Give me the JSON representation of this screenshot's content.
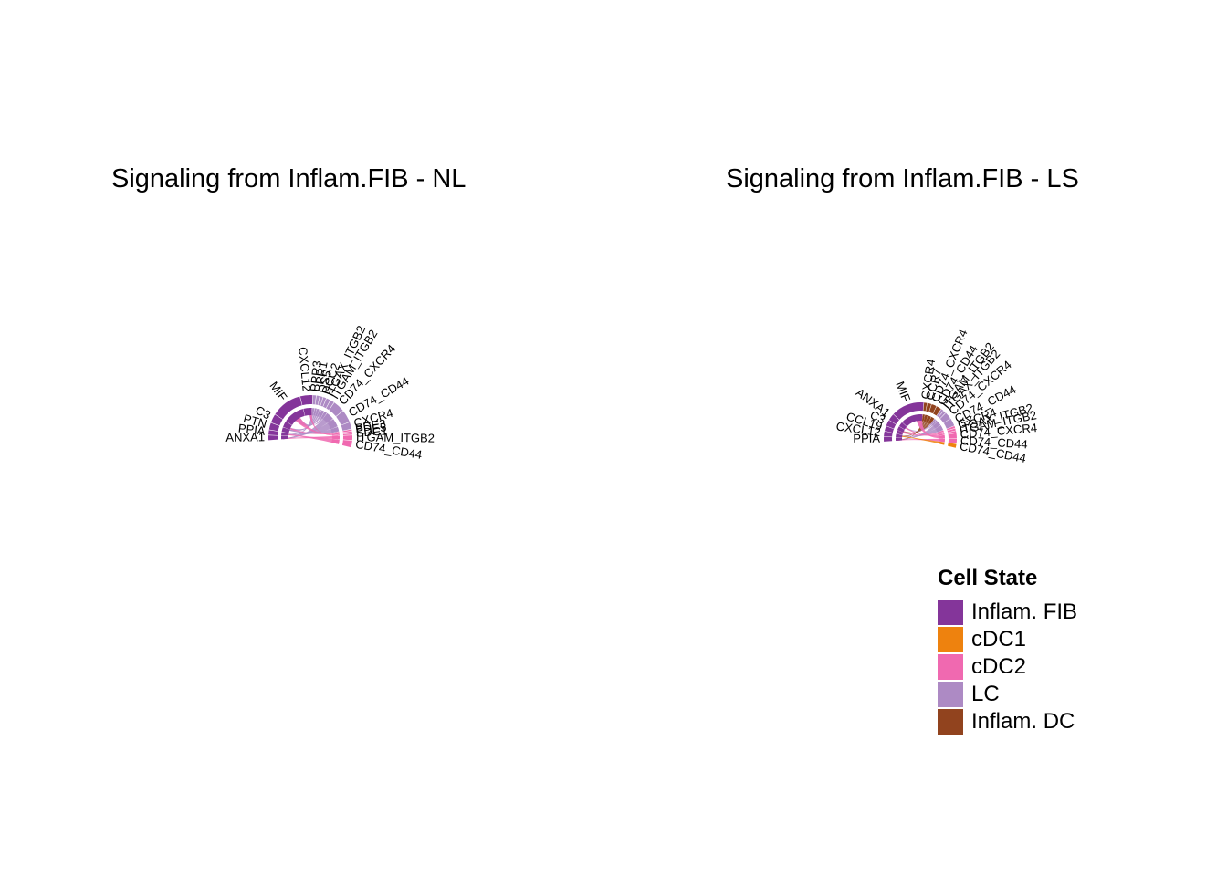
{
  "panels": [
    {
      "title": "Signaling from Inflam.FIB - NL",
      "ligands": [
        {
          "label": "ANXA1",
          "value": 0.5
        },
        {
          "label": "PPIA",
          "value": 0.5
        },
        {
          "label": "PTN",
          "value": 0.7
        },
        {
          "label": "C3",
          "value": 0.9
        },
        {
          "label": "MIF",
          "value": 3.2
        },
        {
          "label": "CXCL12",
          "value": 1.3
        }
      ],
      "receptors": [
        {
          "label": "PPR3",
          "cell": "LC",
          "value": 0.3
        },
        {
          "label": "PPR1",
          "cell": "LC",
          "value": 0.3
        },
        {
          "label": "DS5",
          "cell": "LC",
          "value": 0.3
        },
        {
          "label": "DCC2",
          "cell": "LC",
          "value": 0.3
        },
        {
          "label": "ITGAX_ITGB2",
          "cell": "LC",
          "value": 0.4
        },
        {
          "label": "ITGAM_ITGB2",
          "cell": "LC",
          "value": 0.4
        },
        {
          "label": "CD74_CXCR4",
          "cell": "LC",
          "value": 1.2
        },
        {
          "label": "CD74_CD44",
          "cell": "LC",
          "value": 1.3
        },
        {
          "label": "CXCR4",
          "cell": "LC",
          "value": 0.7
        },
        {
          "label": "PDE3",
          "cell": "cDC2",
          "value": 0.15
        },
        {
          "label": "PDE5",
          "cell": "cDC2",
          "value": 0.15
        },
        {
          "label": "SDC1",
          "cell": "cDC2",
          "value": 0.15
        },
        {
          "label": "ITGAM_ITGB2",
          "cell": "cDC2",
          "value": 0.5
        },
        {
          "label": "CD74_CD44",
          "cell": "cDC2",
          "value": 0.7
        }
      ]
    },
    {
      "title": "Signaling from Inflam.FIB - LS",
      "ligands": [
        {
          "label": "PPIA",
          "value": 0.5
        },
        {
          "label": "CXCL12",
          "value": 0.5
        },
        {
          "label": "CCL19",
          "value": 0.5
        },
        {
          "label": "C3",
          "value": 0.6
        },
        {
          "label": "ANXA1",
          "value": 0.7
        },
        {
          "label": "MIF",
          "value": 3.4
        }
      ],
      "receptors": [
        {
          "label": "CXCR4",
          "cell": "Inflam. DC",
          "value": 0.3
        },
        {
          "label": "CCR7",
          "cell": "Inflam. DC",
          "value": 0.4
        },
        {
          "label": "CD74_CXCR4",
          "cell": "Inflam. DC",
          "value": 0.5
        },
        {
          "label": "CD74_CD44",
          "cell": "Inflam. DC",
          "value": 0.5
        },
        {
          "label": "ITGAM_ITGB2",
          "cell": "LC",
          "value": 0.25
        },
        {
          "label": "ITGAX_ITGB2",
          "cell": "LC",
          "value": 0.25
        },
        {
          "label": "CD74_CXCR4",
          "cell": "LC",
          "value": 0.7
        },
        {
          "label": "CD74_CD44",
          "cell": "LC",
          "value": 0.8
        },
        {
          "label": "CXCR4",
          "cell": "cDC2",
          "value": 0.2
        },
        {
          "label": "ITGAX_ITGB2",
          "cell": "cDC2",
          "value": 0.2
        },
        {
          "label": "ITGAM_ITGB2",
          "cell": "cDC2",
          "value": 0.2
        },
        {
          "label": "CD74_CXCR4",
          "cell": "cDC2",
          "value": 0.5
        },
        {
          "label": "CD74_CD44",
          "cell": "cDC2",
          "value": 0.5
        },
        {
          "label": "CD74_CD44",
          "cell": "cDC1",
          "value": 0.4
        }
      ]
    }
  ],
  "legend": {
    "title": "Cell State",
    "items": [
      {
        "label": "Inflam. FIB",
        "color": "#84359a"
      },
      {
        "label": "cDC1",
        "color": "#ee820e"
      },
      {
        "label": "cDC2",
        "color": "#f069b0"
      },
      {
        "label": "LC",
        "color": "#ad8ac4"
      },
      {
        "label": "Inflam. DC",
        "color": "#91431e"
      }
    ]
  }
}
